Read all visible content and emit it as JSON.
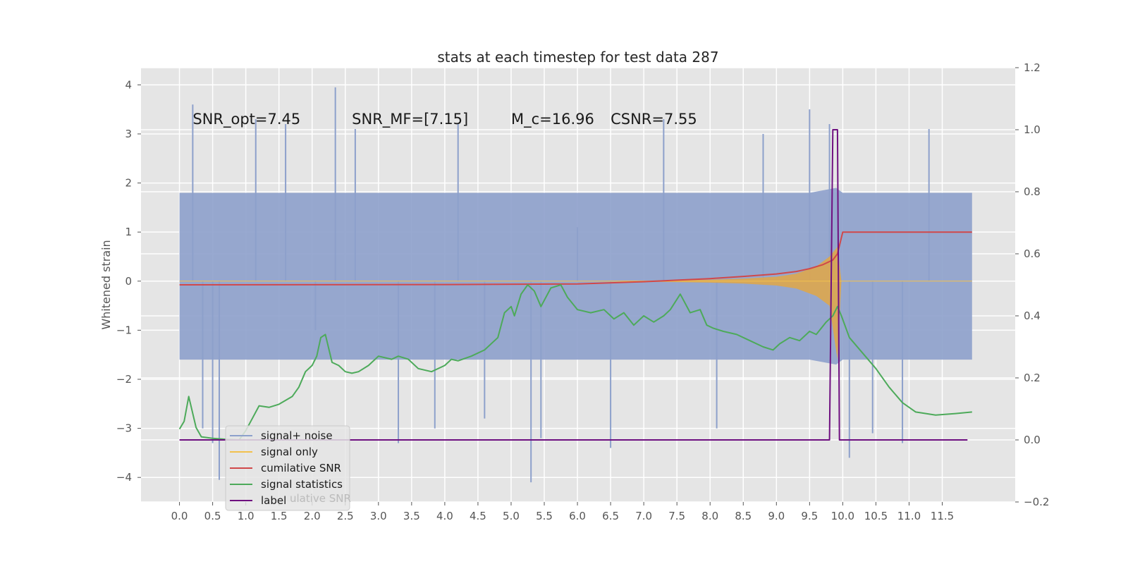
{
  "chart_data": {
    "type": "line",
    "title": "stats at each timestep for test data 287",
    "ylabel": "Whitened strain",
    "xlim": [
      -0.58,
      12.6
    ],
    "ylim": [
      -4.5,
      4.35
    ],
    "y2lim": [
      -0.2,
      1.2
    ],
    "x_ticks": [
      0.0,
      0.5,
      1.0,
      1.5,
      2.0,
      2.5,
      3.0,
      3.5,
      4.0,
      4.5,
      5.0,
      5.5,
      6.0,
      6.5,
      7.0,
      7.5,
      8.0,
      8.5,
      9.0,
      9.5,
      10.0,
      10.5,
      11.0,
      11.5
    ],
    "x_tick_labels": [
      "0.0",
      "0.5",
      "1.0",
      "1.5",
      "2.0",
      "2.5",
      "3.0",
      "3.5",
      "4.0",
      "4.5",
      "5.0",
      "5.5",
      "6.0",
      "6.5",
      "7.0",
      "7.5",
      "8.0",
      "8.5",
      "9.0",
      "9.5",
      "10.0",
      "10.5",
      "11.0",
      "11.5"
    ],
    "y_ticks": [
      -4,
      -3,
      -2,
      -1,
      0,
      1,
      2,
      3,
      4
    ],
    "y_tick_labels": [
      "−4",
      "−3",
      "−2",
      "−1",
      "0",
      "1",
      "2",
      "3",
      "4"
    ],
    "y2_ticks": [
      -0.2,
      0.0,
      0.2,
      0.4,
      0.6,
      0.8,
      1.0,
      1.2
    ],
    "y2_tick_labels": [
      "−0.2",
      "0.0",
      "0.2",
      "0.4",
      "0.6",
      "0.8",
      "1.0",
      "1.2"
    ],
    "grid": true,
    "legend_position": "lower-left",
    "annotations": [
      {
        "text": "SNR_opt=7.45",
        "x": 0.2,
        "y": 3.2
      },
      {
        "text": "SNR_MF=[7.15]",
        "x": 2.6,
        "y": 3.2
      },
      {
        "text": "M_c=16.96",
        "x": 5.0,
        "y": 3.2
      },
      {
        "text": "CSNR=7.55",
        "x": 6.5,
        "y": 3.2
      }
    ],
    "noise_envelope": {
      "x": [
        0.0,
        1.0,
        2.0,
        3.0,
        4.0,
        5.0,
        5.3,
        6.0,
        7.0,
        8.0,
        9.0,
        9.5,
        9.9,
        10.0,
        11.0,
        11.95
      ],
      "upper": [
        1.8,
        1.8,
        1.8,
        1.8,
        1.8,
        1.8,
        1.8,
        1.8,
        1.8,
        1.8,
        1.8,
        1.8,
        1.9,
        1.8,
        1.8,
        1.8
      ],
      "lower": [
        -1.6,
        -1.6,
        -1.6,
        -1.6,
        -1.6,
        -1.6,
        -1.6,
        -1.6,
        -1.6,
        -1.6,
        -1.6,
        -1.6,
        -1.7,
        -1.6,
        -1.6,
        -1.6
      ]
    },
    "noise_spikes": {
      "x": [
        0.2,
        0.35,
        0.5,
        0.6,
        1.15,
        1.6,
        2.05,
        2.35,
        2.65,
        3.3,
        3.85,
        4.2,
        4.6,
        5.3,
        5.45,
        6.0,
        6.5,
        7.3,
        8.1,
        8.8,
        9.5,
        9.8,
        10.1,
        10.45,
        10.9,
        11.3
      ],
      "y": [
        3.6,
        -3.0,
        -3.3,
        -4.05,
        3.3,
        3.2,
        -1.0,
        3.95,
        3.1,
        -3.3,
        -3.0,
        3.2,
        -2.8,
        -4.1,
        -3.2,
        1.1,
        -3.4,
        3.3,
        -3.0,
        3.0,
        3.5,
        3.2,
        -3.6,
        -3.1,
        -3.3,
        3.1
      ]
    },
    "series": [
      {
        "name": "signal+ noise",
        "color": "#8da0cb",
        "axis": "left",
        "x": [
          0.0,
          11.95
        ],
        "y": [
          0.0,
          0.0
        ]
      },
      {
        "name": "signal only",
        "color": "#f2c14e",
        "axis": "left",
        "x": [
          0.0,
          6.0,
          7.0,
          8.0,
          8.5,
          9.0,
          9.3,
          9.6,
          9.8,
          9.92,
          9.98,
          11.95
        ],
        "upper": [
          0.0,
          0.0,
          0.01,
          0.03,
          0.05,
          0.09,
          0.15,
          0.3,
          0.5,
          0.7,
          0.0,
          0.0
        ],
        "lower": [
          0.0,
          0.0,
          -0.01,
          -0.03,
          -0.05,
          -0.09,
          -0.15,
          -0.3,
          -0.5,
          -1.6,
          0.0,
          0.0
        ]
      },
      {
        "name": "cumilative SNR",
        "color": "#d0484a",
        "axis": "right",
        "x": [
          0.0,
          4.0,
          6.0,
          7.0,
          7.5,
          8.0,
          8.5,
          9.0,
          9.3,
          9.5,
          9.7,
          9.85,
          9.92,
          10.0,
          11.95
        ],
        "y": [
          0.5,
          0.501,
          0.503,
          0.51,
          0.515,
          0.52,
          0.527,
          0.535,
          0.543,
          0.552,
          0.565,
          0.58,
          0.6,
          0.67,
          0.67
        ]
      },
      {
        "name": "signal statistics",
        "color": "#4daa5a",
        "axis": "right",
        "x": [
          0.0,
          0.07,
          0.14,
          0.25,
          0.33,
          0.5,
          0.7,
          0.9,
          1.0,
          1.1,
          1.2,
          1.35,
          1.5,
          1.7,
          1.8,
          1.9,
          2.0,
          2.07,
          2.13,
          2.2,
          2.3,
          2.4,
          2.5,
          2.6,
          2.7,
          2.85,
          3.0,
          3.2,
          3.3,
          3.45,
          3.6,
          3.8,
          4.0,
          4.1,
          4.2,
          4.4,
          4.6,
          4.8,
          4.9,
          5.0,
          5.05,
          5.15,
          5.25,
          5.35,
          5.45,
          5.6,
          5.75,
          5.85,
          6.0,
          6.2,
          6.4,
          6.55,
          6.7,
          6.85,
          7.0,
          7.15,
          7.3,
          7.4,
          7.55,
          7.7,
          7.85,
          7.95,
          8.05,
          8.2,
          8.4,
          8.6,
          8.8,
          8.95,
          9.05,
          9.2,
          9.35,
          9.5,
          9.6,
          9.75,
          9.85,
          9.92,
          9.98,
          10.1,
          10.3,
          10.5,
          10.7,
          10.9,
          11.1,
          11.4,
          11.7,
          11.95
        ],
        "y": [
          0.035,
          0.06,
          0.14,
          0.04,
          0.01,
          0.005,
          0.002,
          0.0,
          0.03,
          0.07,
          0.11,
          0.105,
          0.115,
          0.14,
          0.17,
          0.22,
          0.24,
          0.27,
          0.33,
          0.34,
          0.25,
          0.24,
          0.22,
          0.215,
          0.22,
          0.24,
          0.27,
          0.26,
          0.27,
          0.26,
          0.23,
          0.22,
          0.24,
          0.26,
          0.255,
          0.27,
          0.29,
          0.33,
          0.41,
          0.43,
          0.4,
          0.47,
          0.5,
          0.48,
          0.43,
          0.49,
          0.5,
          0.46,
          0.42,
          0.41,
          0.42,
          0.39,
          0.41,
          0.37,
          0.4,
          0.38,
          0.4,
          0.42,
          0.47,
          0.41,
          0.42,
          0.37,
          0.36,
          0.35,
          0.34,
          0.32,
          0.3,
          0.29,
          0.31,
          0.33,
          0.32,
          0.35,
          0.34,
          0.38,
          0.4,
          0.43,
          0.4,
          0.33,
          0.28,
          0.23,
          0.17,
          0.12,
          0.09,
          0.08,
          0.085,
          0.09
        ]
      },
      {
        "name": "label",
        "color": "#6f1080",
        "axis": "right",
        "x": [
          0.0,
          9.8,
          9.85,
          9.92,
          9.95,
          10.0,
          11.88
        ],
        "y": [
          0.0,
          0.0,
          1.0,
          1.0,
          0.0,
          0.0,
          0.0
        ]
      }
    ],
    "legend": [
      {
        "label": "signal+ noise",
        "color": "#8da0cb"
      },
      {
        "label": "signal only",
        "color": "#f2c14e"
      },
      {
        "label": "cumilative SNR",
        "color": "#d0484a"
      },
      {
        "label": "signal statistics",
        "color": "#4daa5a"
      },
      {
        "label": "label",
        "color": "#6f1080"
      }
    ],
    "legend_ghost_text": "ulative SNR"
  }
}
